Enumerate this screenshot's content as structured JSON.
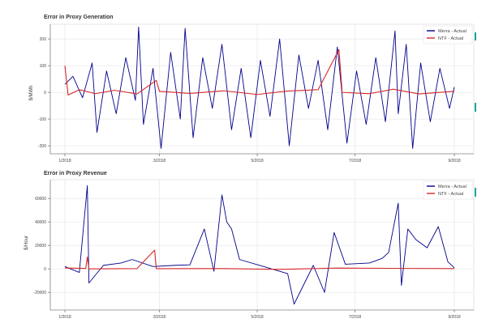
{
  "chart_data": [
    {
      "type": "line",
      "title": "Error in Proxy Generation",
      "xlabel": "",
      "ylabel": "$/MWh",
      "ylim": [
        -230,
        255
      ],
      "y_ticks": [
        -200,
        -100,
        0,
        100,
        200
      ],
      "x_ticks": [
        "1/2018",
        "3/2018",
        "5/2018",
        "7/2018",
        "9/2018"
      ],
      "grid": true,
      "legend_position": "top-right",
      "series": [
        {
          "name": "Merra - Actual",
          "color": "#00008b",
          "points": [
            [
              "2018-01-01",
              30
            ],
            [
              "2018-01-06",
              60
            ],
            [
              "2018-01-12",
              -20
            ],
            [
              "2018-01-18",
              110
            ],
            [
              "2018-01-21",
              -150
            ],
            [
              "2018-01-27",
              80
            ],
            [
              "2018-02-02",
              -80
            ],
            [
              "2018-02-08",
              130
            ],
            [
              "2018-02-14",
              -30
            ],
            [
              "2018-02-16",
              245
            ],
            [
              "2018-02-19",
              -120
            ],
            [
              "2018-02-25",
              90
            ],
            [
              "2018-03-02",
              -210
            ],
            [
              "2018-03-08",
              150
            ],
            [
              "2018-03-14",
              -100
            ],
            [
              "2018-03-17",
              240
            ],
            [
              "2018-03-22",
              -170
            ],
            [
              "2018-03-28",
              130
            ],
            [
              "2018-04-03",
              -60
            ],
            [
              "2018-04-09",
              180
            ],
            [
              "2018-04-15",
              -140
            ],
            [
              "2018-04-21",
              90
            ],
            [
              "2018-04-27",
              -170
            ],
            [
              "2018-05-03",
              120
            ],
            [
              "2018-05-09",
              -90
            ],
            [
              "2018-05-15",
              200
            ],
            [
              "2018-05-21",
              -200
            ],
            [
              "2018-05-27",
              140
            ],
            [
              "2018-06-02",
              -60
            ],
            [
              "2018-06-08",
              120
            ],
            [
              "2018-06-14",
              -140
            ],
            [
              "2018-06-20",
              170
            ],
            [
              "2018-06-26",
              -190
            ],
            [
              "2018-07-02",
              80
            ],
            [
              "2018-07-08",
              -120
            ],
            [
              "2018-07-14",
              130
            ],
            [
              "2018-07-20",
              -110
            ],
            [
              "2018-07-26",
              230
            ],
            [
              "2018-07-28",
              -80
            ],
            [
              "2018-08-02",
              180
            ],
            [
              "2018-08-06",
              -210
            ],
            [
              "2018-08-11",
              110
            ],
            [
              "2018-08-17",
              -110
            ],
            [
              "2018-08-23",
              90
            ],
            [
              "2018-08-29",
              -60
            ],
            [
              "2018-09-01",
              20
            ]
          ]
        },
        {
          "name": "NTF - Actual",
          "color": "#d62728",
          "points": [
            [
              "2018-01-01",
              100
            ],
            [
              "2018-01-03",
              -10
            ],
            [
              "2018-01-10",
              10
            ],
            [
              "2018-01-20",
              -5
            ],
            [
              "2018-02-01",
              8
            ],
            [
              "2018-02-15",
              -6
            ],
            [
              "2018-02-27",
              45
            ],
            [
              "2018-03-01",
              4
            ],
            [
              "2018-03-20",
              -4
            ],
            [
              "2018-04-10",
              6
            ],
            [
              "2018-05-01",
              -8
            ],
            [
              "2018-05-20",
              5
            ],
            [
              "2018-06-08",
              10
            ],
            [
              "2018-06-21",
              160
            ],
            [
              "2018-06-23",
              0
            ],
            [
              "2018-07-10",
              -5
            ],
            [
              "2018-07-25",
              12
            ],
            [
              "2018-08-10",
              -6
            ],
            [
              "2018-09-01",
              4
            ]
          ]
        }
      ]
    },
    {
      "type": "line",
      "title": "Error in Proxy Revenue",
      "xlabel": "",
      "ylabel": "$/Hour",
      "ylim": [
        -35000,
        76000
      ],
      "y_ticks": [
        -20000,
        0,
        20000,
        40000,
        60000
      ],
      "x_ticks": [
        "1/2018",
        "3/2018",
        "5/2018",
        "7/2018",
        "9/2018"
      ],
      "grid": true,
      "legend_position": "top-right",
      "series": [
        {
          "name": "Merra - Actual",
          "color": "#00008b",
          "points": [
            [
              "2018-01-01",
              2000
            ],
            [
              "2018-01-10",
              -3000
            ],
            [
              "2018-01-15",
              71000
            ],
            [
              "2018-01-16",
              -12000
            ],
            [
              "2018-01-25",
              3000
            ],
            [
              "2018-02-05",
              5000
            ],
            [
              "2018-02-12",
              8000
            ],
            [
              "2018-02-25",
              2000
            ],
            [
              "2018-03-10",
              3000
            ],
            [
              "2018-03-20",
              3500
            ],
            [
              "2018-03-29",
              34000
            ],
            [
              "2018-04-04",
              -2000
            ],
            [
              "2018-04-09",
              63000
            ],
            [
              "2018-04-12",
              40000
            ],
            [
              "2018-04-15",
              34000
            ],
            [
              "2018-04-20",
              8000
            ],
            [
              "2018-05-05",
              2000
            ],
            [
              "2018-05-20",
              -4000
            ],
            [
              "2018-05-24",
              -30000
            ],
            [
              "2018-06-05",
              3000
            ],
            [
              "2018-06-12",
              -20000
            ],
            [
              "2018-06-18",
              31000
            ],
            [
              "2018-06-25",
              4000
            ],
            [
              "2018-07-10",
              5000
            ],
            [
              "2018-07-18",
              9000
            ],
            [
              "2018-07-22",
              14000
            ],
            [
              "2018-07-28",
              56000
            ],
            [
              "2018-07-30",
              -14000
            ],
            [
              "2018-08-03",
              34000
            ],
            [
              "2018-08-08",
              25000
            ],
            [
              "2018-08-15",
              18000
            ],
            [
              "2018-08-22",
              36000
            ],
            [
              "2018-08-28",
              6000
            ],
            [
              "2018-09-01",
              1000
            ]
          ]
        },
        {
          "name": "NTF - Actual",
          "color": "#d62728",
          "points": [
            [
              "2018-01-01",
              800
            ],
            [
              "2018-01-14",
              400
            ],
            [
              "2018-01-15",
              10000
            ],
            [
              "2018-01-16",
              0
            ],
            [
              "2018-02-15",
              300
            ],
            [
              "2018-02-26",
              16000
            ],
            [
              "2018-02-27",
              200
            ],
            [
              "2018-04-10",
              300
            ],
            [
              "2018-05-15",
              -400
            ],
            [
              "2018-06-20",
              700
            ],
            [
              "2018-07-20",
              500
            ],
            [
              "2018-09-01",
              300
            ]
          ]
        }
      ]
    }
  ]
}
